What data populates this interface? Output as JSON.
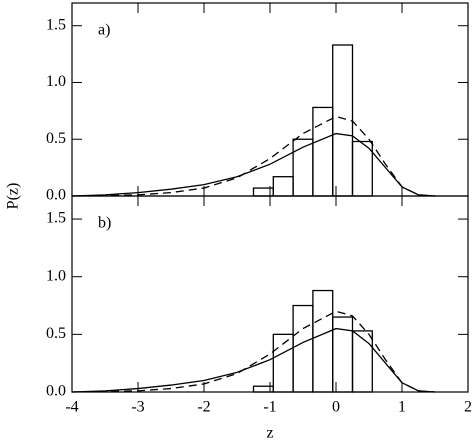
{
  "chart_data": [
    {
      "type": "histogram",
      "annotation": "a)",
      "ylabel": "P(z)",
      "bins": [
        -1.25,
        -0.95,
        -0.65,
        -0.35,
        -0.05,
        0.25,
        0.55
      ],
      "values": [
        0.07,
        0.17,
        0.5,
        0.78,
        1.33,
        0.48
      ],
      "curves": [
        {
          "dash": false,
          "x": [
            -4,
            -3.5,
            -3,
            -2.5,
            -2,
            -1.5,
            -1,
            -0.5,
            0,
            0.25,
            0.5,
            0.75,
            1,
            1.25,
            1.5
          ],
          "values": [
            0,
            0.01,
            0.03,
            0.06,
            0.1,
            0.17,
            0.28,
            0.43,
            0.55,
            0.53,
            0.42,
            0.25,
            0.08,
            0.01,
            0
          ]
        },
        {
          "dash": true,
          "x": [
            -4,
            -3,
            -2.5,
            -2,
            -1.5,
            -1,
            -0.5,
            0,
            0.25,
            0.5,
            0.75,
            1,
            1.25,
            1.5
          ],
          "values": [
            0,
            0.01,
            0.03,
            0.07,
            0.16,
            0.33,
            0.55,
            0.7,
            0.66,
            0.5,
            0.28,
            0.08,
            0.01,
            0
          ]
        }
      ],
      "xlim": [
        -4,
        2
      ],
      "xticks": [
        -4,
        -3,
        -2,
        -1,
        0,
        1,
        2
      ],
      "xticklabels": false,
      "ylim": [
        0,
        1.7
      ],
      "yticks": [
        {
          "value": 0,
          "label": "0.0"
        },
        {
          "value": 0.5,
          "label": "0.5"
        },
        {
          "value": 1,
          "label": "1.0"
        },
        {
          "value": 1.5,
          "label": "1.5"
        }
      ]
    },
    {
      "type": "histogram",
      "annotation": "b)",
      "xlabel": "z",
      "bins": [
        -1.25,
        -0.95,
        -0.65,
        -0.35,
        -0.05,
        0.25,
        0.55
      ],
      "values": [
        0.05,
        0.5,
        0.75,
        0.88,
        0.65,
        0.53
      ],
      "curves": [
        {
          "dash": false,
          "x": [
            -4,
            -3.5,
            -3,
            -2.5,
            -2,
            -1.5,
            -1,
            -0.5,
            0,
            0.25,
            0.5,
            0.75,
            1,
            1.25,
            1.5
          ],
          "values": [
            0,
            0.01,
            0.03,
            0.06,
            0.1,
            0.17,
            0.28,
            0.43,
            0.55,
            0.53,
            0.42,
            0.25,
            0.08,
            0.01,
            0
          ]
        },
        {
          "dash": true,
          "x": [
            -4,
            -3,
            -2.5,
            -2,
            -1.5,
            -1,
            -0.5,
            0,
            0.25,
            0.5,
            0.75,
            1,
            1.25,
            1.5
          ],
          "values": [
            0,
            0.01,
            0.03,
            0.07,
            0.16,
            0.33,
            0.55,
            0.7,
            0.66,
            0.5,
            0.28,
            0.08,
            0.01,
            0
          ]
        }
      ],
      "xlim": [
        -4,
        2
      ],
      "xticks": [
        -4,
        -3,
        -2,
        -1,
        0,
        1,
        2
      ],
      "xticklabels": true,
      "ylim": [
        0,
        1.7
      ],
      "yticks": [
        {
          "value": 0,
          "label": "0.0"
        },
        {
          "value": 0.5,
          "label": "0.5"
        },
        {
          "value": 1,
          "label": "1.0"
        },
        {
          "value": 1.5,
          "label": "1.5"
        }
      ]
    }
  ]
}
